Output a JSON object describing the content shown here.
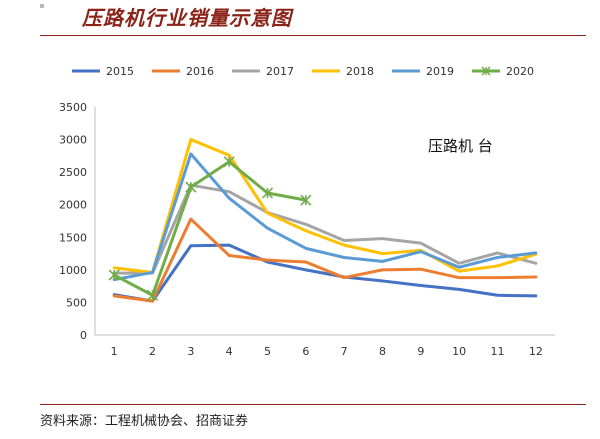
{
  "header": {
    "title": "压路机行业销量示意图"
  },
  "footer": {
    "source": "资料来源：工程机械协会、招商证券"
  },
  "chart_data": {
    "type": "line",
    "title": "",
    "annotation": "压路机 台",
    "xlabel": "",
    "ylabel": "",
    "categories": [
      "1",
      "2",
      "3",
      "4",
      "5",
      "6",
      "7",
      "8",
      "9",
      "10",
      "11",
      "12"
    ],
    "ylim": [
      0,
      3500
    ],
    "yticks": [
      0,
      500,
      1000,
      1500,
      2000,
      2500,
      3000,
      3500
    ],
    "grid": false,
    "legend_position": "top",
    "series": [
      {
        "name": "2015",
        "color": "#4472C4",
        "values": [
          620,
          520,
          1370,
          1380,
          1120,
          1000,
          890,
          830,
          760,
          700,
          610,
          600
        ]
      },
      {
        "name": "2016",
        "color": "#ED7D31",
        "values": [
          600,
          520,
          1780,
          1220,
          1150,
          1120,
          880,
          1000,
          1010,
          880,
          880,
          890
        ]
      },
      {
        "name": "2017",
        "color": "#A5A5A5",
        "values": [
          950,
          950,
          2300,
          2200,
          1880,
          1700,
          1450,
          1480,
          1410,
          1100,
          1260,
          1100
        ]
      },
      {
        "name": "2018",
        "color": "#FFC000",
        "values": [
          1030,
          960,
          3000,
          2760,
          1870,
          1600,
          1380,
          1250,
          1300,
          980,
          1060,
          1240
        ]
      },
      {
        "name": "2019",
        "color": "#5B9BD5",
        "values": [
          850,
          960,
          2780,
          2100,
          1640,
          1330,
          1190,
          1130,
          1280,
          1040,
          1190,
          1260
        ]
      },
      {
        "name": "2020",
        "color": "#70AD47",
        "marker": "asterisk",
        "values": [
          920,
          610,
          2270,
          2660,
          2180,
          2070,
          null,
          null,
          null,
          null,
          null,
          null
        ]
      }
    ]
  }
}
